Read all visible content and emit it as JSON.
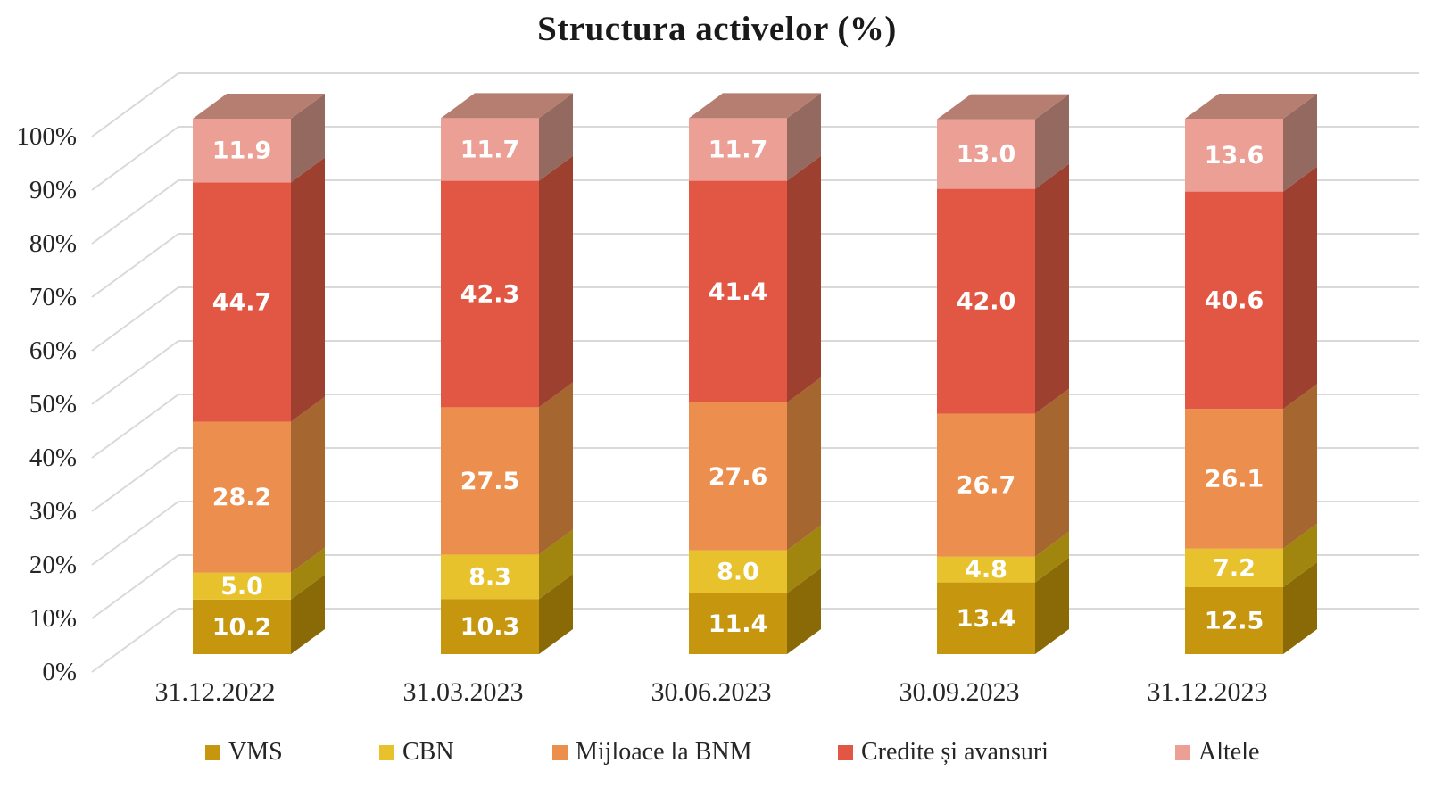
{
  "chart_data": {
    "type": "bar",
    "stacked": true,
    "effect": "3d-column",
    "title": "Structura activelor (%)",
    "categories": [
      "31.12.2022",
      "31.03.2023",
      "30.06.2023",
      "30.09.2023",
      "31.12.2023"
    ],
    "series": [
      {
        "name": "VMS",
        "values": [
          10.2,
          10.3,
          11.4,
          13.4,
          12.5
        ],
        "color": "#C6960F",
        "side_color": "#8A6A06"
      },
      {
        "name": "CBN",
        "values": [
          5.0,
          8.3,
          8.0,
          4.8,
          7.2
        ],
        "color": "#E8C22C",
        "side_color": "#A0860E"
      },
      {
        "name": "Mijloace la BNM",
        "values": [
          28.2,
          27.5,
          27.6,
          26.7,
          26.1
        ],
        "color": "#EC8E4D",
        "side_color": "#A5672F"
      },
      {
        "name": "Credite și avansuri",
        "values": [
          44.7,
          42.3,
          41.4,
          42.0,
          40.6
        ],
        "color": "#E25744",
        "side_color": "#9E4030"
      },
      {
        "name": "Altele",
        "values": [
          11.9,
          11.7,
          11.7,
          13.0,
          13.6
        ],
        "color": "#ECA095",
        "side_color": "#946A60",
        "top_color": "#B57E71"
      }
    ],
    "y_ticks": [
      "0%",
      "10%",
      "20%",
      "30%",
      "40%",
      "50%",
      "60%",
      "70%",
      "80%",
      "90%",
      "100%"
    ],
    "ylim": [
      0,
      100
    ],
    "grid": true,
    "gridline_color": "#D9D9D9",
    "value_label_color": "#FFFFFF",
    "axis_text_color": "#262626",
    "legend_position": "bottom"
  }
}
